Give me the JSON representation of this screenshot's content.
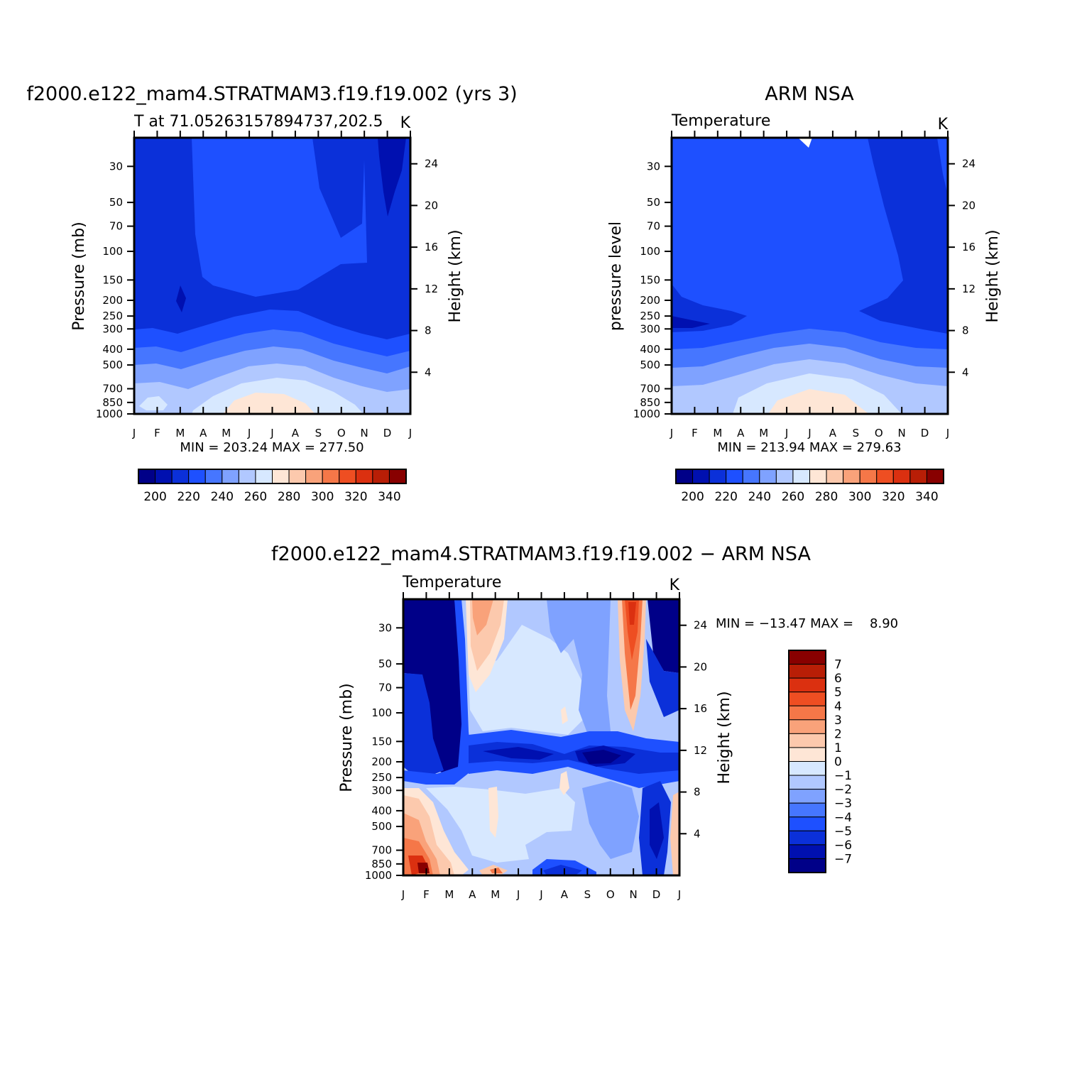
{
  "chart_data": [
    {
      "type": "heatmap",
      "title": "f2000.e122_mam4.STRATMAM3.f19.f19.002 (yrs 3)",
      "subtitle": "T at 71.05263157894737,202.5",
      "units": "K",
      "ylabel": "Pressure (mb)",
      "ylabel_right": "Height (km)",
      "x_ticks": [
        "J",
        "F",
        "M",
        "A",
        "M",
        "J",
        "J",
        "A",
        "S",
        "O",
        "N",
        "D",
        "J"
      ],
      "y_ticks": [
        "30",
        "50",
        "70",
        "100",
        "150",
        "200",
        "250",
        "300",
        "400",
        "500",
        "700",
        "850",
        "1000"
      ],
      "y_ticks_right": [
        "24",
        "20",
        "16",
        "12",
        "8",
        "4"
      ],
      "stats": "MIN = 203.24 MAX = 277.50",
      "colorbar_labels": [
        "200",
        "220",
        "240",
        "260",
        "280",
        "300",
        "320",
        "340"
      ],
      "levels": [
        190,
        200,
        210,
        220,
        230,
        240,
        250,
        260,
        270,
        280,
        290,
        300,
        310,
        320,
        330,
        340,
        350
      ],
      "colors": [
        "#000088",
        "#0010b0",
        "#0b30d9",
        "#1e50ff",
        "#4676ff",
        "#7fa2ff",
        "#b1c8ff",
        "#d7e8ff",
        "#fee6d6",
        "#fcc9ad",
        "#f9a27a",
        "#f57748",
        "#ee4e22",
        "#db3010",
        "#b81e06",
        "#880000"
      ],
      "min": 203.24,
      "max": 277.5
    },
    {
      "type": "heatmap",
      "title": "ARM NSA",
      "subtitle": "Temperature",
      "units": "K",
      "ylabel": "pressure level",
      "ylabel_right": "Height (km)",
      "x_ticks": [
        "J",
        "F",
        "M",
        "A",
        "M",
        "J",
        "J",
        "A",
        "S",
        "O",
        "N",
        "D",
        "J"
      ],
      "y_ticks": [
        "30",
        "50",
        "70",
        "100",
        "150",
        "200",
        "250",
        "300",
        "400",
        "500",
        "700",
        "850",
        "1000"
      ],
      "y_ticks_right": [
        "24",
        "20",
        "16",
        "12",
        "8",
        "4"
      ],
      "stats": "MIN = 213.94 MAX = 279.63",
      "colorbar_labels": [
        "200",
        "220",
        "240",
        "260",
        "280",
        "300",
        "320",
        "340"
      ],
      "levels": [
        190,
        200,
        210,
        220,
        230,
        240,
        250,
        260,
        270,
        280,
        290,
        300,
        310,
        320,
        330,
        340,
        350
      ],
      "colors": [
        "#000088",
        "#0010b0",
        "#0b30d9",
        "#1e50ff",
        "#4676ff",
        "#7fa2ff",
        "#b1c8ff",
        "#d7e8ff",
        "#fee6d6",
        "#fcc9ad",
        "#f9a27a",
        "#f57748",
        "#ee4e22",
        "#db3010",
        "#b81e06",
        "#880000"
      ],
      "min": 213.94,
      "max": 279.63
    },
    {
      "type": "heatmap",
      "title": "f2000.e122_mam4.STRATMAM3.f19.f19.002 - ARM NSA",
      "subtitle": "Temperature",
      "units": "K",
      "ylabel": "Pressure (mb)",
      "ylabel_right": "Height (km)",
      "x_ticks": [
        "J",
        "F",
        "M",
        "A",
        "M",
        "J",
        "J",
        "A",
        "S",
        "O",
        "N",
        "D",
        "J"
      ],
      "y_ticks": [
        "30",
        "50",
        "70",
        "100",
        "150",
        "200",
        "250",
        "300",
        "400",
        "500",
        "700",
        "850",
        "1000"
      ],
      "y_ticks_right": [
        "24",
        "20",
        "16",
        "12",
        "8",
        "4"
      ],
      "stats": "MIN = -13.47 MAX =    8.90",
      "colorbar_labels": [
        "7",
        "6",
        "5",
        "4",
        "3",
        "2",
        "1",
        "0",
        "-1",
        "-2",
        "-3",
        "-4",
        "-5",
        "-6",
        "-7"
      ],
      "levels": [
        -8,
        -7,
        -6,
        -5,
        -4,
        -3,
        -2,
        -1,
        0,
        1,
        2,
        3,
        4,
        5,
        6,
        7,
        8
      ],
      "colors": [
        "#000088",
        "#0010b0",
        "#0b30d9",
        "#1e50ff",
        "#4676ff",
        "#7fa2ff",
        "#b1c8ff",
        "#d7e8ff",
        "#fee6d6",
        "#fcc9ad",
        "#f9a27a",
        "#f57748",
        "#ee4e22",
        "#db3010",
        "#b81e06",
        "#880000"
      ],
      "min": -13.47,
      "max": 8.9
    }
  ]
}
